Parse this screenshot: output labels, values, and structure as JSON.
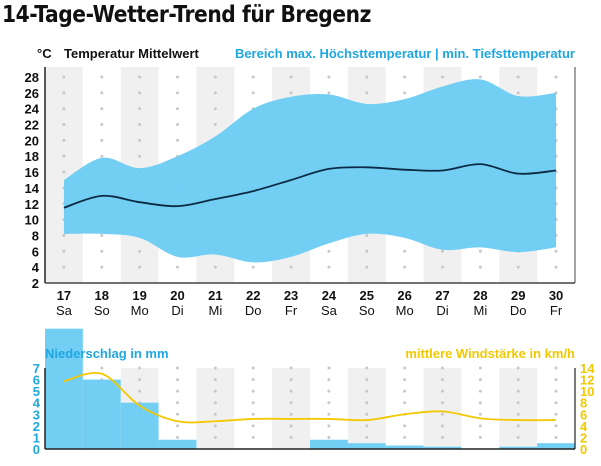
{
  "title": "14-Tage-Wetter-Trend für Bregenz",
  "colors": {
    "range_fill": "#6ccbf3",
    "mean_line": "#0d2a44",
    "band": "#f0f0f0",
    "dot": "#c8c8c8",
    "rain_fill": "#6ccbf3",
    "wind_line": "#f3c800",
    "accent_blue": "#1ea7e1",
    "accent_yellow": "#f3c800"
  },
  "chart_data": [
    {
      "type": "area",
      "title": "14-Tage-Wetter-Trend für Bregenz",
      "ylabel": "°C",
      "legend": {
        "mean_label": "Temperatur Mittelwert",
        "range_label": "Bereich max. Höchsttemperatur | min. Tiefsttemperatur",
        "placement": "top"
      },
      "ylim": [
        2,
        28
      ],
      "yticks": [
        2,
        4,
        6,
        8,
        10,
        12,
        14,
        16,
        18,
        20,
        22,
        24,
        26,
        28
      ],
      "grid": "dotted",
      "x": [
        "17",
        "18",
        "19",
        "20",
        "21",
        "22",
        "23",
        "24",
        "25",
        "26",
        "27",
        "28",
        "29",
        "30"
      ],
      "weekdays": [
        "Sa",
        "So",
        "Mo",
        "Di",
        "Mi",
        "Do",
        "Fr",
        "Sa",
        "So",
        "Mo",
        "Di",
        "Mi",
        "Do",
        "Fr"
      ],
      "series": [
        {
          "name": "max. Höchsttemperatur",
          "values": [
            15,
            17.8,
            16.5,
            18,
            20.5,
            24,
            25.5,
            25.8,
            24.6,
            25.2,
            26.8,
            27.7,
            25.6,
            26
          ]
        },
        {
          "name": "Temperatur Mittelwert",
          "values": [
            11.5,
            13,
            12.2,
            11.7,
            12.6,
            13.6,
            15,
            16.4,
            16.6,
            16.3,
            16.2,
            17,
            15.8,
            16.2
          ]
        },
        {
          "name": "min. Tiefsttemperatur",
          "values": [
            8.2,
            8.2,
            7.7,
            5.3,
            5.6,
            4.6,
            5.3,
            7,
            8.2,
            7.7,
            6.2,
            6.5,
            5.9,
            6.5
          ]
        }
      ]
    },
    {
      "type": "bar",
      "title": "",
      "x": [
        "17",
        "18",
        "19",
        "20",
        "21",
        "22",
        "23",
        "24",
        "25",
        "26",
        "27",
        "28",
        "29",
        "30"
      ],
      "left_axis": {
        "label": "Niederschlag in mm",
        "ylim": [
          0,
          7
        ],
        "ticks": [
          0,
          1,
          2,
          3,
          4,
          5,
          6,
          7
        ]
      },
      "right_axis": {
        "label": "mittlere Windstärke in km/h",
        "ylim": [
          0,
          14
        ],
        "ticks": [
          0,
          2,
          4,
          6,
          8,
          10,
          12,
          14
        ]
      },
      "series": [
        {
          "name": "Niederschlag in mm",
          "type": "bar",
          "axis": "left",
          "values": [
            10.4,
            6,
            4,
            0.8,
            0,
            0,
            0,
            0.8,
            0.5,
            0.3,
            0.2,
            0,
            0.2,
            0.5
          ]
        },
        {
          "name": "mittlere Windstärke in km/h",
          "type": "line",
          "axis": "right",
          "values": [
            11.7,
            13,
            7.5,
            4.8,
            4.8,
            5.2,
            5.2,
            5.2,
            5,
            6,
            6.5,
            5.3,
            5,
            5
          ]
        }
      ]
    }
  ]
}
